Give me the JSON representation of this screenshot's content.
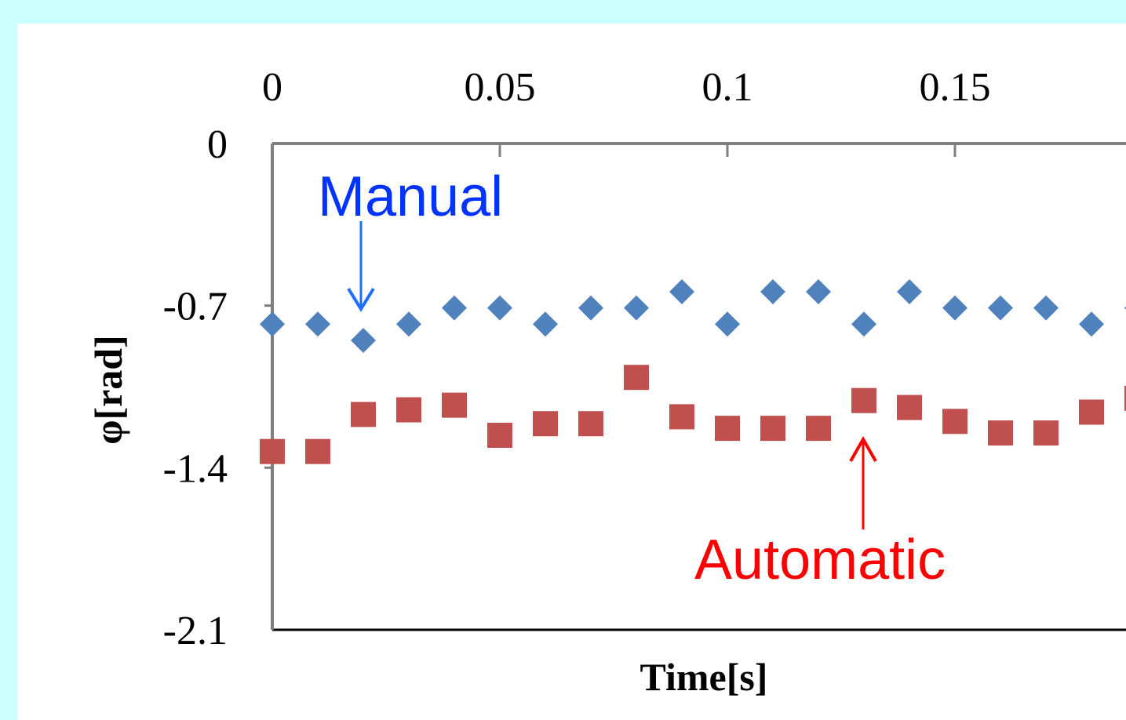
{
  "colors": {
    "background": "#ccffff",
    "panel": "#ffffff",
    "axis": "#7f7f7f",
    "manual_series": "#4f81bd",
    "automatic_series": "#c0504d",
    "manual_annotation": "#0033ff",
    "manual_arrow": "#1f6fff",
    "automatic_annotation": "#ff0000"
  },
  "chart_data": {
    "type": "scatter",
    "title": "",
    "xlabel": "Time[s]",
    "ylabel": "φ[rad]",
    "xlim": [
      0,
      0.19
    ],
    "ylim": [
      -2.1,
      0
    ],
    "x_axis_position": "top",
    "y_axis_reversed": false,
    "grid": false,
    "legend": "none",
    "x_ticks": [
      {
        "value": 0,
        "label": "0"
      },
      {
        "value": 0.05,
        "label": "0.05"
      },
      {
        "value": 0.1,
        "label": "0.1"
      },
      {
        "value": 0.15,
        "label": "0.15"
      }
    ],
    "y_ticks": [
      {
        "value": 0,
        "label": "0"
      },
      {
        "value": -0.7,
        "label": "-0.7"
      },
      {
        "value": -1.4,
        "label": "-1.4"
      },
      {
        "value": -2.1,
        "label": "-2.1"
      }
    ],
    "series": [
      {
        "marker": "diamond",
        "color": "#4f81bd",
        "x": [
          0,
          0.01,
          0.02,
          0.03,
          0.04,
          0.05,
          0.06,
          0.07,
          0.08,
          0.09,
          0.1,
          0.11,
          0.12,
          0.13,
          0.14,
          0.15,
          0.16,
          0.17,
          0.18,
          0.19
        ],
        "y": [
          -0.78,
          -0.78,
          -0.85,
          -0.78,
          -0.71,
          -0.71,
          -0.78,
          -0.71,
          -0.71,
          -0.64,
          -0.78,
          -0.64,
          -0.64,
          -0.78,
          -0.64,
          -0.71,
          -0.71,
          -0.71,
          -0.78,
          -0.71
        ]
      },
      {
        "marker": "square",
        "color": "#c0504d",
        "x": [
          0,
          0.01,
          0.02,
          0.03,
          0.04,
          0.05,
          0.06,
          0.07,
          0.08,
          0.09,
          0.1,
          0.11,
          0.12,
          0.13,
          0.14,
          0.15,
          0.16,
          0.17,
          0.18,
          0.19
        ],
        "y": [
          -1.33,
          -1.33,
          -1.17,
          -1.15,
          -1.13,
          -1.26,
          -1.21,
          -1.21,
          -1.01,
          -1.18,
          -1.23,
          -1.23,
          -1.23,
          -1.11,
          -1.14,
          -1.2,
          -1.25,
          -1.25,
          -1.16,
          -1.1
        ]
      }
    ],
    "annotations": [
      {
        "text": "Manual",
        "target_x": 0.02,
        "target_y": -0.71,
        "color": "#0033ff",
        "arrow": "down"
      },
      {
        "text": "Automatic",
        "target_x": 0.13,
        "target_y": -1.27,
        "color": "#ff0000",
        "arrow": "up"
      }
    ]
  }
}
